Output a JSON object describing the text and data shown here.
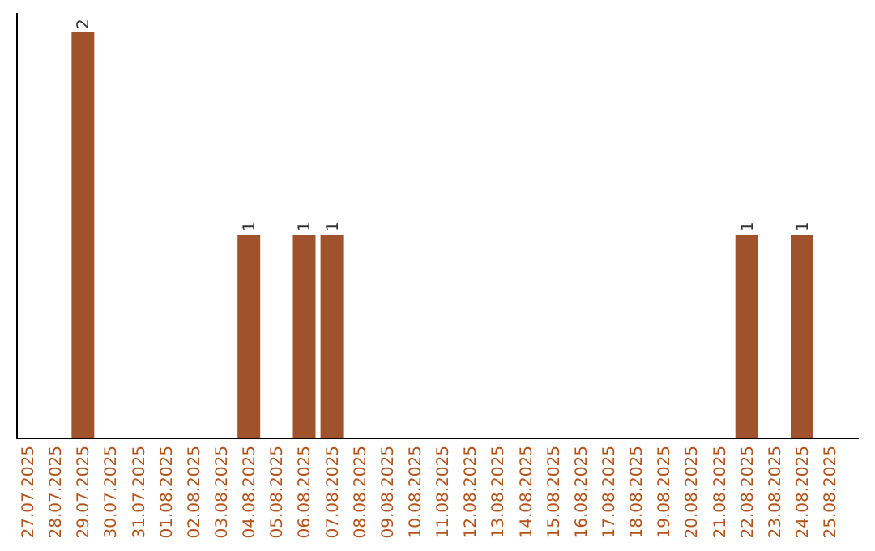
{
  "chart_data": {
    "type": "bar",
    "categories": [
      "27.07.2025",
      "28.07.2025",
      "29.07.2025",
      "30.07.2025",
      "31.07.2025",
      "01.08.2025",
      "02.08.2025",
      "03.08.2025",
      "04.08.2025",
      "05.08.2025",
      "06.08.2025",
      "07.08.2025",
      "08.08.2025",
      "09.08.2025",
      "10.08.2025",
      "11.08.2025",
      "12.08.2025",
      "13.08.2025",
      "14.08.2025",
      "15.08.2025",
      "16.08.2025",
      "17.08.2025",
      "18.08.2025",
      "19.08.2025",
      "20.08.2025",
      "21.08.2025",
      "22.08.2025",
      "23.08.2025",
      "24.08.2025",
      "25.08.2025"
    ],
    "values": [
      0,
      0,
      2,
      0,
      0,
      0,
      0,
      0,
      1,
      0,
      1,
      1,
      0,
      0,
      0,
      0,
      0,
      0,
      0,
      0,
      0,
      0,
      0,
      0,
      0,
      0,
      1,
      0,
      1,
      0
    ],
    "value_labels": [
      null,
      null,
      "2",
      null,
      null,
      null,
      null,
      null,
      "1",
      null,
      "1",
      "1",
      null,
      null,
      null,
      null,
      null,
      null,
      null,
      null,
      null,
      null,
      null,
      null,
      null,
      null,
      "1",
      null,
      "1",
      null
    ],
    "color": "#a0522d",
    "grid": false,
    "legend": false
  }
}
